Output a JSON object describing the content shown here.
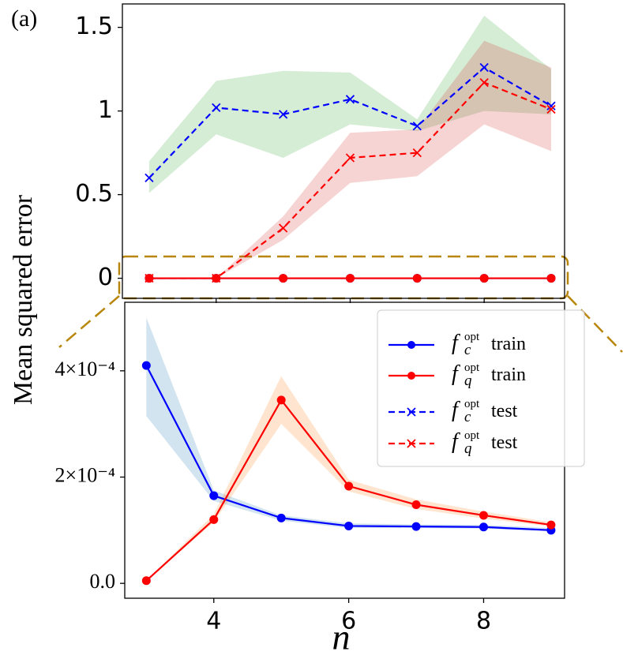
{
  "panel_label": "(a)",
  "chart_data": [
    {
      "type": "line",
      "ylabel": "Mean squared error",
      "x": [
        3,
        4,
        5,
        6,
        7,
        8,
        9
      ],
      "xlim": [
        2.6,
        9.2
      ],
      "xticks": [
        4,
        6,
        8
      ],
      "ylim": [
        -0.12,
        1.64
      ],
      "yticks": [
        0.0,
        0.5,
        1.0,
        1.5
      ],
      "series": [
        {
          "name": "f_c^opt train",
          "color": "#0000ff",
          "dash": false,
          "marker": "o",
          "values": [
            0,
            0,
            0,
            0,
            0,
            0,
            0
          ]
        },
        {
          "name": "f_q^opt train",
          "color": "#ff0000",
          "dash": false,
          "marker": "o",
          "values": [
            0,
            0,
            0,
            0,
            0,
            0,
            0
          ]
        },
        {
          "name": "f_c^opt test",
          "color": "#0000ff",
          "dash": true,
          "marker": "x",
          "values": [
            0.6,
            1.02,
            0.98,
            1.07,
            0.91,
            1.26,
            1.03
          ],
          "band_color": "#2ca02c",
          "lower": [
            0.51,
            0.86,
            0.72,
            0.92,
            0.88,
            1.0,
            0.98
          ],
          "upper": [
            0.7,
            1.18,
            1.24,
            1.23,
            0.95,
            1.57,
            1.25
          ]
        },
        {
          "name": "f_q^opt test",
          "color": "#ff0000",
          "dash": true,
          "marker": "x",
          "values": [
            0,
            0,
            0.3,
            0.72,
            0.75,
            1.17,
            1.01
          ],
          "band_color": "#d62728",
          "lower": [
            0,
            0,
            0.23,
            0.57,
            0.61,
            0.92,
            0.76
          ],
          "upper": [
            0,
            0,
            0.37,
            0.87,
            0.89,
            1.42,
            1.26
          ]
        }
      ]
    },
    {
      "type": "line",
      "xlabel": "n",
      "x": [
        3,
        4,
        5,
        6,
        7,
        8,
        9
      ],
      "xlim": [
        2.68,
        9.2
      ],
      "xticks": [
        4,
        6,
        8
      ],
      "ylim": [
        -2.8e-05,
        0.000529
      ],
      "yticks": [
        {
          "value": 0,
          "label": "0.0"
        },
        {
          "value": 0.0002,
          "label": "2×10⁻⁴"
        },
        {
          "value": 0.0004,
          "label": "4×10⁻⁴"
        }
      ],
      "series": [
        {
          "color": "#0000ff",
          "dash": false,
          "marker": "o",
          "values": [
            0.00041,
            0.000165,
            0.000123,
            0.000108,
            0.000107,
            0.000106,
            0.0001
          ],
          "band_color": "#1f77b4",
          "lower": [
            0.000315,
            0.000155,
            0.000118,
            0.000104,
            0.000104,
            0.000103,
            9.8e-05
          ],
          "upper": [
            0.0005,
            0.000175,
            0.000128,
            0.000113,
            0.000111,
            0.00011,
            0.000104
          ]
        },
        {
          "color": "#ff0000",
          "dash": false,
          "marker": "o",
          "values": [
            5e-06,
            0.00012,
            0.000345,
            0.000183,
            0.000148,
            0.000128,
            0.00011
          ],
          "band_color": "#ff7f0e",
          "lower": [
            5e-06,
            0.000115,
            0.0003,
            0.000173,
            0.00014,
            0.000122,
            0.000107
          ],
          "upper": [
            5e-06,
            0.00013,
            0.00039,
            0.000195,
            0.000158,
            0.000135,
            0.000115
          ]
        }
      ]
    }
  ]
}
